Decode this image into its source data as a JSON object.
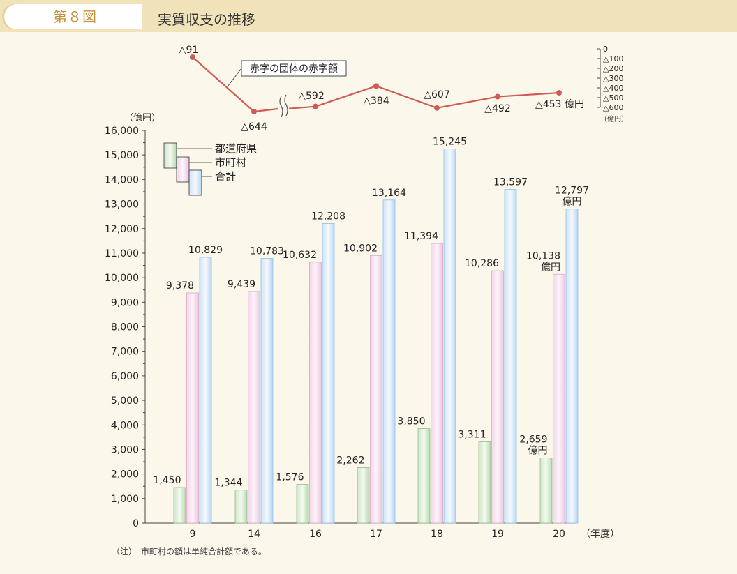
{
  "header": {
    "figure_number": "第８図",
    "title": "実質収支の推移"
  },
  "chart_data": [
    {
      "type": "line",
      "series": [
        {
          "name": "赤字の団体の赤字額",
          "values": [
            -91,
            -644,
            -592,
            -384,
            -607,
            -492,
            -453
          ]
        }
      ],
      "categories": [
        "9",
        "14",
        "16",
        "17",
        "18",
        "19",
        "20"
      ],
      "point_labels": [
        "△91",
        "△644",
        "△592",
        "△384",
        "△607",
        "△492",
        "△453 億円"
      ],
      "y_ticks": [
        "0",
        "△100",
        "△200",
        "△300",
        "△400",
        "△500",
        "△600"
      ],
      "y_unit": "（億円）",
      "ylim": [
        -600,
        0
      ],
      "axis_break_after_category": "14",
      "color": "#d05a54"
    },
    {
      "type": "bar",
      "categories": [
        "9",
        "14",
        "16",
        "17",
        "18",
        "19",
        "20"
      ],
      "series": [
        {
          "name": "都道府県",
          "values": [
            1450,
            1344,
            1576,
            2262,
            3850,
            3311,
            2659
          ],
          "labels": [
            "1,450",
            "1,344",
            "1,576",
            "2,262",
            "3,850",
            "3,311",
            "2,659\n億円"
          ]
        },
        {
          "name": "市町村",
          "values": [
            9378,
            9439,
            10632,
            10902,
            11394,
            10286,
            10138
          ],
          "labels": [
            "9,378",
            "9,439",
            "10,632",
            "10,902",
            "11,394",
            "10,286",
            "10,138\n億円"
          ]
        },
        {
          "name": "合計",
          "values": [
            10829,
            10783,
            12208,
            13164,
            15245,
            13597,
            12797
          ],
          "labels": [
            "10,829",
            "10,783",
            "12,208",
            "13,164",
            "15,245",
            "13,597",
            "12,797\n億円"
          ]
        }
      ],
      "colors": {
        "都道府県": [
          "#e3f0de",
          "#8fbf86"
        ],
        "市町村": [
          "#f8e6f2",
          "#dba8c8"
        ],
        "合計": [
          "#e6f1fb",
          "#8ec0ea"
        ]
      },
      "ylim": [
        0,
        16000
      ],
      "y_ticks": [
        "0",
        "1,000",
        "2,000",
        "3,000",
        "4,000",
        "5,000",
        "6,000",
        "7,000",
        "8,000",
        "9,000",
        "10,000",
        "11,000",
        "12,000",
        "13,000",
        "14,000",
        "15,000",
        "16,000"
      ],
      "ylabel": "（億円）",
      "xlabel": "（年度）",
      "legend_position": "top-left"
    }
  ],
  "note": "（注）　市町村の額は単純合計額である。"
}
